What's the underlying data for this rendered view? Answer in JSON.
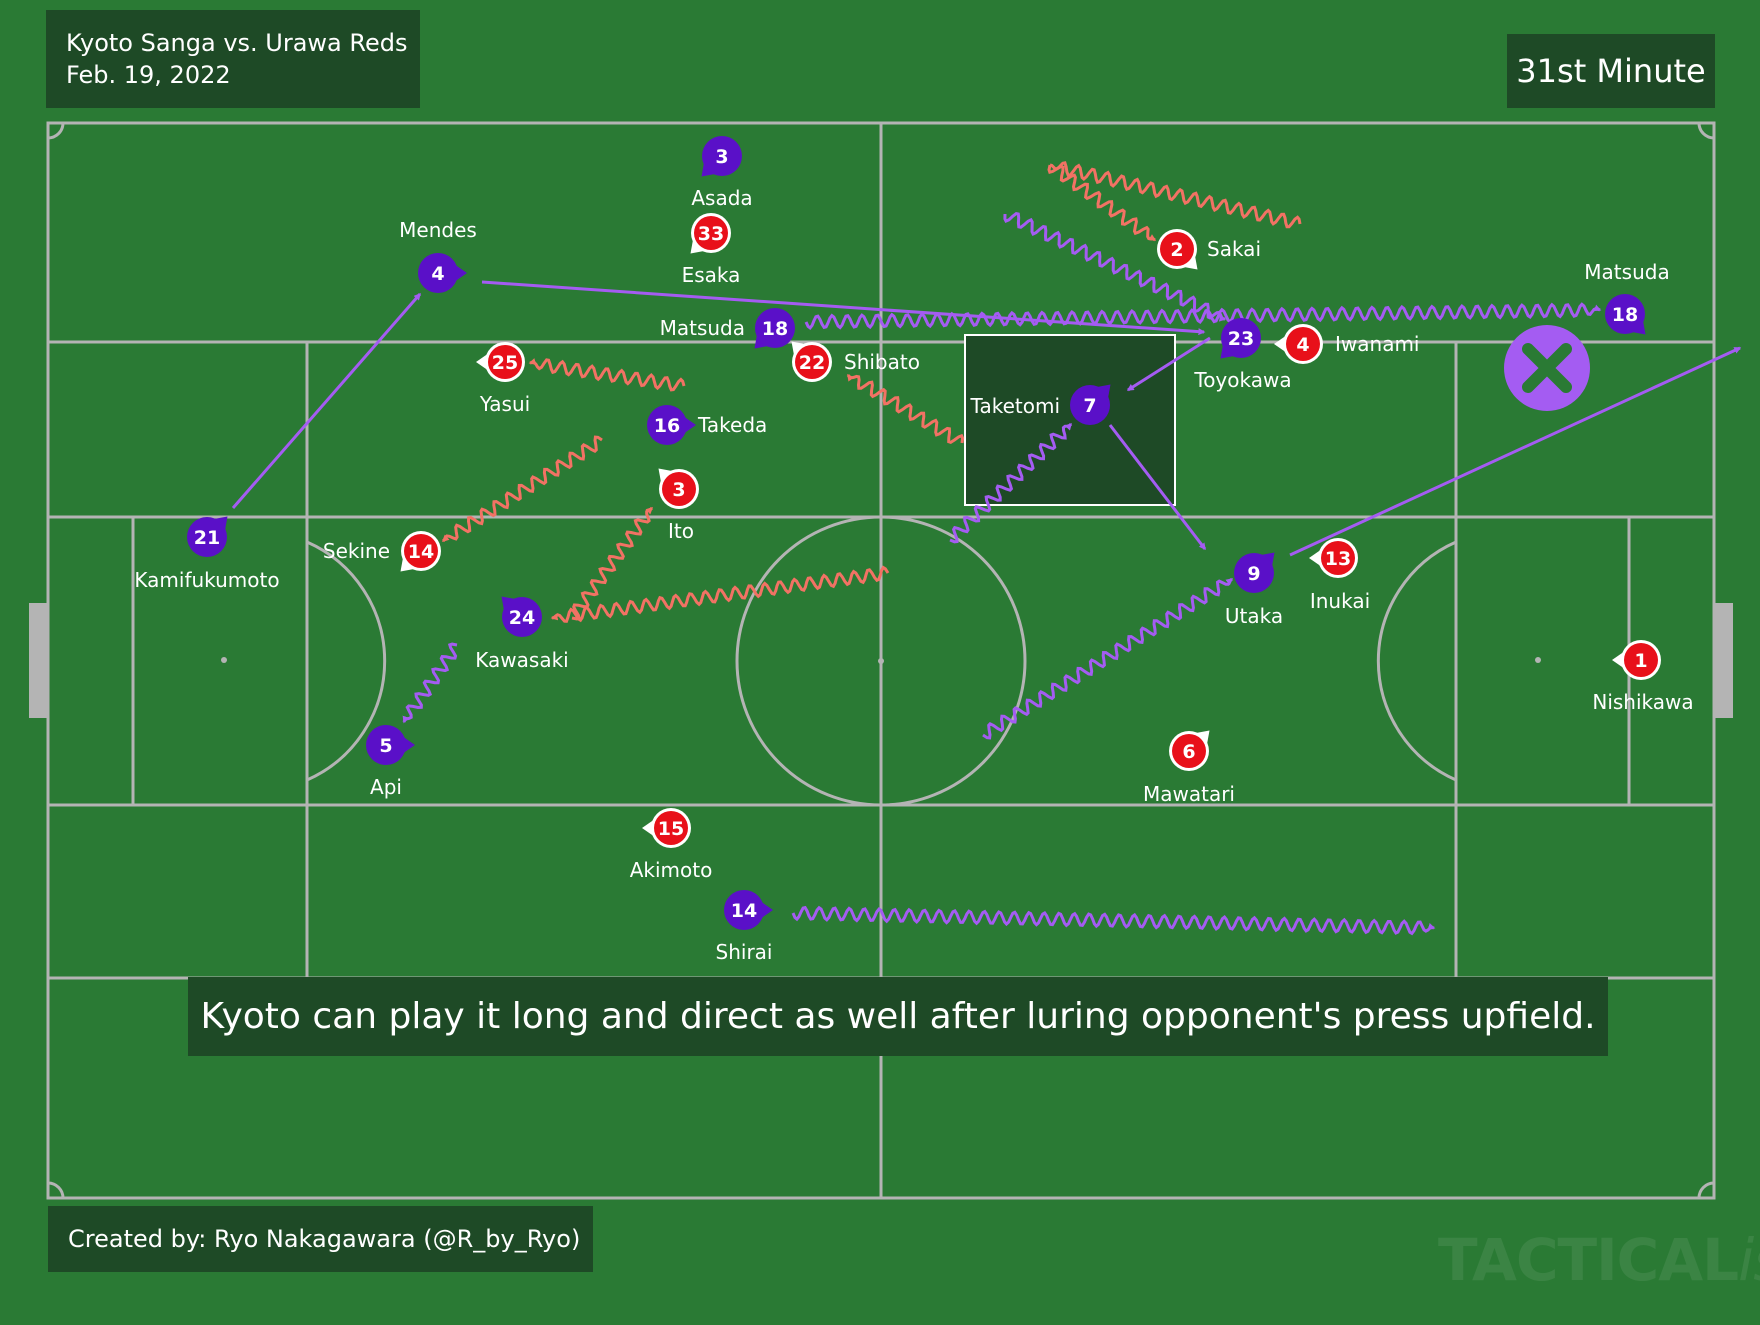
{
  "header": {
    "match": "Kyoto Sanga vs. Urawa Reds",
    "date": "Feb. 19, 2022",
    "minute": "31st Minute"
  },
  "caption": "Kyoto can play it long and direct as well after luring opponent's press upfield.",
  "credit": "Created by: Ryo Nakagawara (@R_by_Ryo)",
  "watermark": {
    "main": "TACTICAL",
    "suffix": "ista"
  },
  "colors": {
    "pitch": "#2a7a34",
    "box": "#1e4a26",
    "kyoto": "#5a10c8",
    "urawa": "#e8101a",
    "kyoto_run": "#a45cf2",
    "urawa_run": "#f27264",
    "line": "#b4b4b4"
  },
  "icons": {
    "failed_pass": "x-circle-icon"
  },
  "players": [
    {
      "team": "kyoto",
      "num": "21",
      "name": "Kamifukumoto"
    },
    {
      "team": "kyoto",
      "num": "4",
      "name": "Mendes"
    },
    {
      "team": "kyoto",
      "num": "3",
      "name": "Asada"
    },
    {
      "team": "kyoto",
      "num": "18",
      "name": "Matsuda"
    },
    {
      "team": "kyoto",
      "num": "16",
      "name": "Takeda"
    },
    {
      "team": "kyoto",
      "num": "24",
      "name": "Kawasaki"
    },
    {
      "team": "kyoto",
      "num": "5",
      "name": "Api"
    },
    {
      "team": "kyoto",
      "num": "14",
      "name": "Shirai"
    },
    {
      "team": "kyoto",
      "num": "7",
      "name": "Taketomi"
    },
    {
      "team": "kyoto",
      "num": "23",
      "name": "Toyokawa"
    },
    {
      "team": "kyoto",
      "num": "9",
      "name": "Utaka"
    },
    {
      "team": "kyoto",
      "num": "18",
      "name": "Matsuda"
    },
    {
      "team": "urawa",
      "num": "33",
      "name": "Esaka"
    },
    {
      "team": "urawa",
      "num": "25",
      "name": "Yasui"
    },
    {
      "team": "urawa",
      "num": "22",
      "name": "Shibato"
    },
    {
      "team": "urawa",
      "num": "3",
      "name": "Ito"
    },
    {
      "team": "urawa",
      "num": "14",
      "name": "Sekine"
    },
    {
      "team": "urawa",
      "num": "15",
      "name": "Akimoto"
    },
    {
      "team": "urawa",
      "num": "2",
      "name": "Sakai"
    },
    {
      "team": "urawa",
      "num": "4",
      "name": "Iwanami"
    },
    {
      "team": "urawa",
      "num": "13",
      "name": "Inukai"
    },
    {
      "team": "urawa",
      "num": "6",
      "name": "Mawatari"
    },
    {
      "team": "urawa",
      "num": "1",
      "name": "Nishikawa"
    }
  ]
}
